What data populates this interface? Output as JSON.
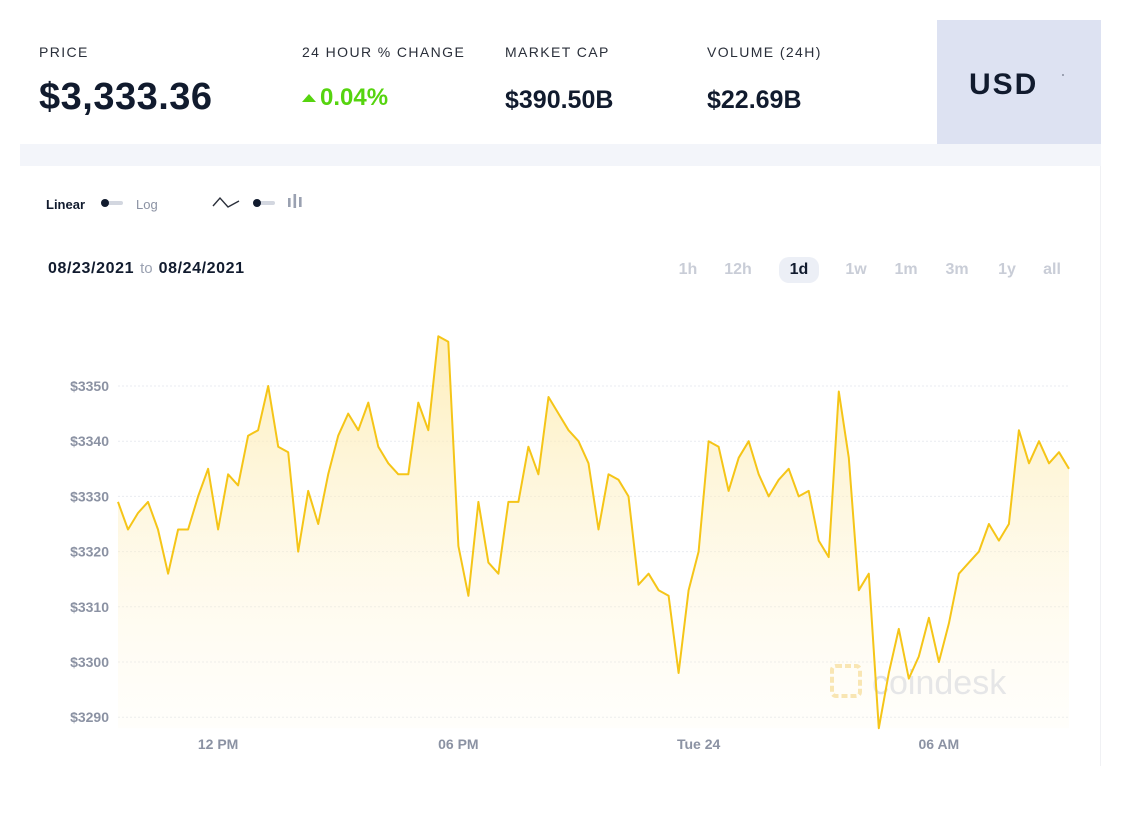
{
  "stats": {
    "price_label": "PRICE",
    "price_value": "$3,333.36",
    "change_label": "24 HOUR % CHANGE",
    "change_value": "0.04%",
    "mcap_label": "MARKET CAP",
    "mcap_value": "$390.50B",
    "volume_label": "VOLUME (24H)",
    "volume_value": "$22.69B"
  },
  "currency": {
    "selected": "USD"
  },
  "scale_toggle": {
    "left_label": "Linear",
    "right_label": "Log",
    "active": "Linear"
  },
  "chart_toggle": {
    "left_icon": "line-chart-icon",
    "right_icon": "candlestick-chart-icon",
    "active": "line"
  },
  "date_range": {
    "from": "08/23/2021",
    "to_word": "to",
    "to": "08/24/2021"
  },
  "timeframes": [
    "1h",
    "12h",
    "1d",
    "1w",
    "1m",
    "3m",
    "1y",
    "all"
  ],
  "active_timeframe": "1d",
  "watermark": "coindesk",
  "colors": {
    "line": "#f5c518",
    "positive": "#56d40f",
    "currency_bg": "#dde2f2",
    "text_dark": "#111b2e"
  },
  "chart_data": {
    "type": "area",
    "ylim": [
      3288,
      3352
    ],
    "y_ticks": [
      3290,
      3300,
      3310,
      3320,
      3330,
      3340,
      3350
    ],
    "y_tick_labels": [
      "$3290",
      "$3300",
      "$3310",
      "$3320",
      "$3330",
      "$3340",
      "$3350"
    ],
    "x_tick_labels": [
      {
        "label": "12 PM",
        "index": 10
      },
      {
        "label": "06 PM",
        "index": 34
      },
      {
        "label": "Tue 24",
        "index": 58
      },
      {
        "label": "06 AM",
        "index": 82
      }
    ],
    "values": [
      3329,
      3324,
      3327,
      3329,
      3324,
      3316,
      3324,
      3324,
      3330,
      3335,
      3324,
      3334,
      3332,
      3341,
      3342,
      3350,
      3339,
      3338,
      3320,
      3331,
      3325,
      3334,
      3341,
      3345,
      3342,
      3347,
      3339,
      3336,
      3334,
      3334,
      3347,
      3342,
      3359,
      3358,
      3321,
      3312,
      3329,
      3318,
      3316,
      3329,
      3329,
      3339,
      3334,
      3348,
      3345,
      3342,
      3340,
      3336,
      3324,
      3334,
      3333,
      3330,
      3314,
      3316,
      3313,
      3312,
      3298,
      3313,
      3320,
      3340,
      3339,
      3331,
      3337,
      3340,
      3334,
      3330,
      3333,
      3335,
      3330,
      3331,
      3322,
      3319,
      3349,
      3337,
      3313,
      3316,
      3288,
      3298,
      3306,
      3297,
      3301,
      3308,
      3300,
      3307,
      3316,
      3318,
      3320,
      3325,
      3322,
      3325,
      3342,
      3336,
      3340,
      3336,
      3338,
      3335
    ]
  }
}
